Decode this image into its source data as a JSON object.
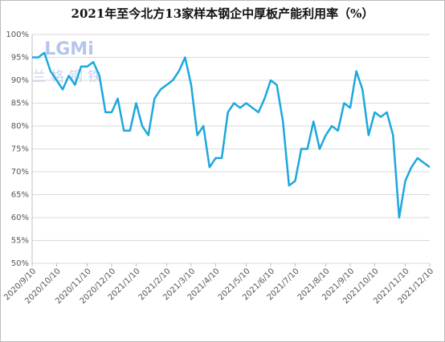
{
  "chart_data": {
    "type": "line",
    "title": "2021年至今北方13家样本钢企中厚板产能利用率（%）",
    "watermark": [
      "LGMi",
      "兰格钢铁"
    ],
    "categories": [
      "2020/9/10",
      null,
      null,
      null,
      "2020/10/10",
      null,
      null,
      null,
      null,
      "2020/11/10",
      null,
      null,
      null,
      "2020/12/10",
      null,
      null,
      null,
      "2021/1/10",
      null,
      null,
      null,
      null,
      "2021/2/10",
      null,
      null,
      null,
      "2021/3/10",
      null,
      null,
      null,
      "2021/4/10",
      null,
      null,
      null,
      null,
      "2021/5/10",
      null,
      null,
      null,
      "2021/6/10",
      null,
      null,
      null,
      "2021/7/10",
      null,
      null,
      null,
      null,
      "2021/8/10",
      null,
      null,
      null,
      "2021/9/10",
      null,
      null,
      null,
      "2021/10/10",
      null,
      null,
      null,
      null,
      "2021/11/10",
      null,
      null,
      null,
      "2021/12/10"
    ],
    "series": [
      {
        "color": "#1ca8dd",
        "values": [
          95,
          95,
          96,
          92,
          90,
          88,
          91,
          89,
          93,
          93,
          94,
          91,
          83,
          83,
          86,
          79,
          79,
          85,
          80,
          78,
          86,
          88,
          89,
          90,
          92,
          95,
          89,
          78,
          80,
          71,
          73,
          73,
          83,
          85,
          84,
          85,
          84,
          83,
          86,
          90,
          89,
          81,
          67,
          68,
          75,
          75,
          81,
          75,
          78,
          80,
          79,
          85,
          84,
          92,
          88,
          78,
          83,
          82,
          83,
          78,
          60,
          68,
          71,
          73,
          72,
          71
        ]
      }
    ],
    "ylim": [
      50,
      100
    ],
    "yticks": [
      {
        "value": 50,
        "label": "50%"
      },
      {
        "value": 55,
        "label": "55%"
      },
      {
        "value": 60,
        "label": "60%"
      },
      {
        "value": 65,
        "label": "65%"
      },
      {
        "value": 70,
        "label": "70%"
      },
      {
        "value": 75,
        "label": "75%"
      },
      {
        "value": 80,
        "label": "80%"
      },
      {
        "value": 85,
        "label": "85%"
      },
      {
        "value": 90,
        "label": "90%"
      },
      {
        "value": 95,
        "label": "95%"
      },
      {
        "value": 100,
        "label": "100%"
      }
    ],
    "grid": true
  }
}
